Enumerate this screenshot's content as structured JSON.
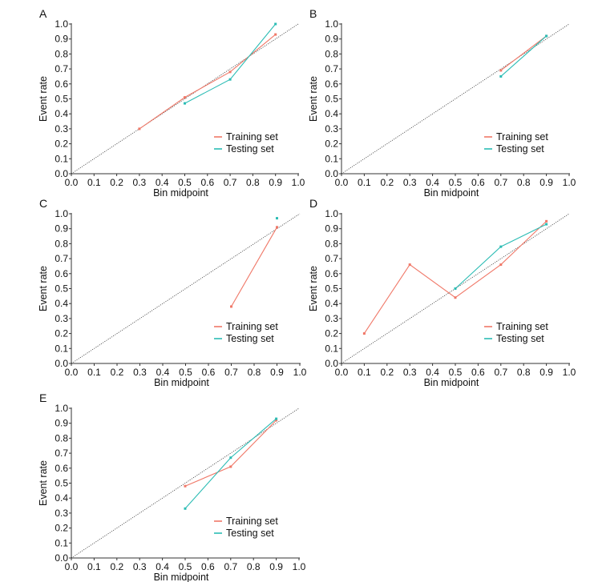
{
  "chart_data": [
    {
      "panel": "A",
      "type": "line",
      "xlabel": "Bin midpoint",
      "ylabel": "Event rate",
      "xlim": [
        0,
        1
      ],
      "ylim": [
        0,
        1
      ],
      "ticks": [
        "0.0",
        "0.1",
        "0.2",
        "0.3",
        "0.4",
        "0.5",
        "0.6",
        "0.7",
        "0.8",
        "0.9",
        "1.0"
      ],
      "grid": false,
      "legend_position": "bottom-right",
      "series": [
        {
          "name": "Training set",
          "color": "#f07868",
          "x": [
            0.3,
            0.5,
            0.7,
            0.9
          ],
          "y": [
            0.3,
            0.51,
            0.68,
            0.93
          ]
        },
        {
          "name": "Testing set",
          "color": "#2bbcb4",
          "x": [
            0.5,
            0.7,
            0.9
          ],
          "y": [
            0.47,
            0.63,
            1.0
          ]
        }
      ]
    },
    {
      "panel": "B",
      "type": "line",
      "xlabel": "Bin midpoint",
      "ylabel": "Event rate",
      "xlim": [
        0,
        1
      ],
      "ylim": [
        0,
        1
      ],
      "ticks": [
        "0.0",
        "0.1",
        "0.2",
        "0.3",
        "0.4",
        "0.5",
        "0.6",
        "0.7",
        "0.8",
        "0.9",
        "1.0"
      ],
      "grid": false,
      "legend_position": "bottom-right",
      "series": [
        {
          "name": "Training set",
          "color": "#f07868",
          "x": [
            0.7,
            0.9
          ],
          "y": [
            0.69,
            0.92
          ]
        },
        {
          "name": "Testing set",
          "color": "#2bbcb4",
          "x": [
            0.7,
            0.9
          ],
          "y": [
            0.65,
            0.92
          ]
        }
      ]
    },
    {
      "panel": "C",
      "type": "line",
      "xlabel": "Bin midpoint",
      "ylabel": "Event rate",
      "xlim": [
        0,
        1
      ],
      "ylim": [
        0,
        1
      ],
      "ticks": [
        "0.0",
        "0.1",
        "0.2",
        "0.3",
        "0.4",
        "0.5",
        "0.6",
        "0.7",
        "0.8",
        "0.9",
        "1.0"
      ],
      "grid": false,
      "legend_position": "bottom-right",
      "series": [
        {
          "name": "Training set",
          "color": "#f07868",
          "x": [
            0.7,
            0.9
          ],
          "y": [
            0.38,
            0.91
          ]
        },
        {
          "name": "Testing set",
          "color": "#2bbcb4",
          "x": [
            0.9
          ],
          "y": [
            0.97
          ]
        }
      ]
    },
    {
      "panel": "D",
      "type": "line",
      "xlabel": "Bin midpoint",
      "ylabel": "Event rate",
      "xlim": [
        0,
        1
      ],
      "ylim": [
        0,
        1
      ],
      "ticks": [
        "0.0",
        "0.1",
        "0.2",
        "0.3",
        "0.4",
        "0.5",
        "0.6",
        "0.7",
        "0.8",
        "0.9",
        "1.0"
      ],
      "grid": false,
      "legend_position": "bottom-right",
      "series": [
        {
          "name": "Training set",
          "color": "#f07868",
          "x": [
            0.1,
            0.3,
            0.5,
            0.7,
            0.9
          ],
          "y": [
            0.2,
            0.66,
            0.44,
            0.66,
            0.95
          ]
        },
        {
          "name": "Testing set",
          "color": "#2bbcb4",
          "x": [
            0.5,
            0.7,
            0.9
          ],
          "y": [
            0.5,
            0.78,
            0.93
          ]
        }
      ]
    },
    {
      "panel": "E",
      "type": "line",
      "xlabel": "Bin midpoint",
      "ylabel": "Event rate",
      "xlim": [
        0,
        1
      ],
      "ylim": [
        0,
        1
      ],
      "ticks": [
        "0.0",
        "0.1",
        "0.2",
        "0.3",
        "0.4",
        "0.5",
        "0.6",
        "0.7",
        "0.8",
        "0.9",
        "1.0"
      ],
      "grid": false,
      "legend_position": "bottom-right",
      "series": [
        {
          "name": "Training set",
          "color": "#f07868",
          "x": [
            0.5,
            0.7,
            0.9
          ],
          "y": [
            0.48,
            0.61,
            0.92
          ]
        },
        {
          "name": "Testing set",
          "color": "#2bbcb4",
          "x": [
            0.5,
            0.7,
            0.9
          ],
          "y": [
            0.33,
            0.67,
            0.93
          ]
        }
      ]
    }
  ]
}
